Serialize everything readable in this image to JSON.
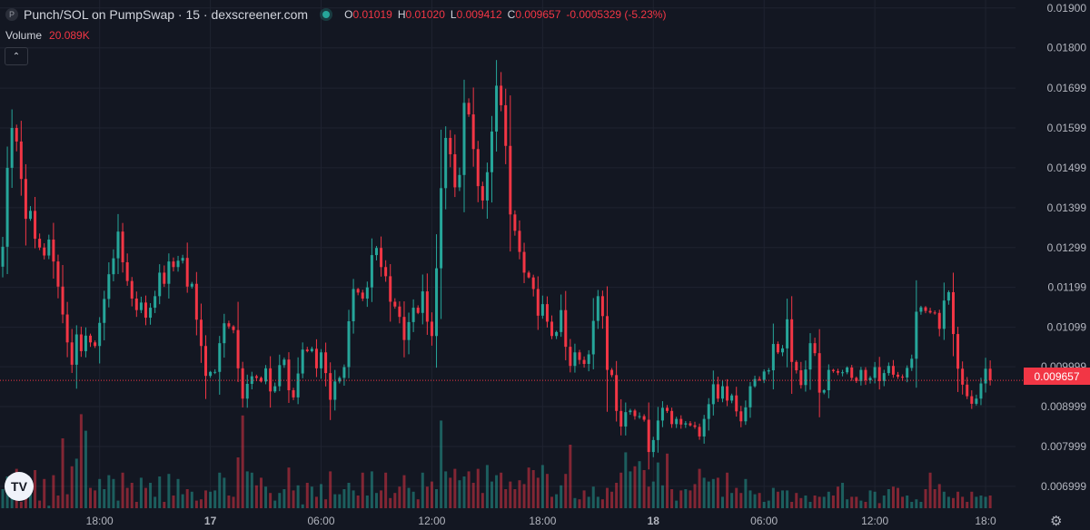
{
  "legend": {
    "symbol_icon": "P",
    "title": "Punch/SOL on PumpSwap · 15 · dexscreener.com",
    "open_key": "O",
    "open": "0.01019",
    "high_key": "H",
    "high": "0.01020",
    "low_key": "L",
    "low": "0.009412",
    "close_key": "C",
    "close": "0.009657",
    "change": "-0.0005329 (-5.23%)"
  },
  "volume": {
    "label": "Volume",
    "value": "20.089K"
  },
  "collapse_icon": "chevron-up-icon",
  "logo_text": "TV",
  "settings_icon": "gear-icon",
  "colors": {
    "up": "#26a69a",
    "down": "#f23645",
    "background": "#131722",
    "grid": "#1f2330",
    "text": "#b2b5be"
  },
  "chart_data": {
    "type": "candlestick",
    "price_axis": {
      "ylim": [
        0.00645,
        0.0192
      ],
      "ticks": [
        "0.01900",
        "0.01800",
        "0.01699",
        "0.01599",
        "0.01499",
        "0.01399",
        "0.01299",
        "0.01199",
        "0.01099",
        "0.009999",
        "0.008999",
        "0.007999",
        "0.006999"
      ],
      "tick_values": [
        0.019,
        0.018,
        0.01699,
        0.01599,
        0.01499,
        0.01399,
        0.01299,
        0.01199,
        0.01099,
        0.009999,
        0.008999,
        0.007999,
        0.006999
      ]
    },
    "time_axis": {
      "labels": [
        "18:00",
        "17",
        "06:00",
        "12:00",
        "18:00",
        "18",
        "06:00",
        "12:00",
        "18:0"
      ],
      "bold": [
        false,
        true,
        false,
        false,
        false,
        true,
        false,
        false,
        false
      ],
      "bar_index": [
        21,
        45,
        69,
        93,
        117,
        141,
        165,
        189,
        213
      ]
    },
    "last_price": 0.009657,
    "last_price_label": "0.009657",
    "closes": [
      0.01301,
      0.01499,
      0.01599,
      0.01565,
      0.01471,
      0.01371,
      0.01391,
      0.01321,
      0.01299,
      0.01279,
      0.01319,
      0.01264,
      0.01201,
      0.01131,
      0.01061,
      0.01005,
      0.01081,
      0.01039,
      0.01078,
      0.01061,
      0.01052,
      0.0111,
      0.0117,
      0.01232,
      0.01272,
      0.01339,
      0.01262,
      0.01215,
      0.01171,
      0.01142,
      0.01161,
      0.01123,
      0.01148,
      0.01177,
      0.01236,
      0.01208,
      0.01264,
      0.0125,
      0.01266,
      0.01273,
      0.01201,
      0.01208,
      0.01118,
      0.01052,
      0.00977,
      0.00987,
      0.00987,
      0.01059,
      0.01109,
      0.01101,
      0.01092,
      0.00996,
      0.0092,
      0.00957,
      0.00976,
      0.00972,
      0.00963,
      0.00996,
      0.00938,
      0.00951,
      0.01004,
      0.01018,
      0.00941,
      0.00923,
      0.00983,
      0.01043,
      0.01039,
      0.01045,
      0.00996,
      0.01036,
      0.00984,
      0.00917,
      0.00963,
      0.00972,
      0.00999,
      0.01114,
      0.01195,
      0.01186,
      0.01171,
      0.01199,
      0.0128,
      0.01298,
      0.0125,
      0.01227,
      0.01163,
      0.01151,
      0.01125,
      0.01067,
      0.01112,
      0.01148,
      0.01135,
      0.01189,
      0.01113,
      0.01077,
      0.01247,
      0.01448,
      0.01574,
      0.01533,
      0.0145,
      0.01481,
      0.01662,
      0.01633,
      0.01546,
      0.01453,
      0.01417,
      0.01488,
      0.0159,
      0.01705,
      0.01656,
      0.01554,
      0.01382,
      0.01341,
      0.01288,
      0.01236,
      0.01224,
      0.01195,
      0.01128,
      0.01157,
      0.01113,
      0.01077,
      0.01087,
      0.01142,
      0.0105,
      0.01002,
      0.01036,
      0.01017,
      0.01007,
      0.01031,
      0.01115,
      0.01177,
      0.01127,
      0.00992,
      0.00979,
      0.00889,
      0.0085,
      0.00886,
      0.0089,
      0.00876,
      0.00876,
      0.00867,
      0.00786,
      0.00816,
      0.00865,
      0.00897,
      0.00889,
      0.00856,
      0.00869,
      0.00855,
      0.00858,
      0.00853,
      0.00849,
      0.00825,
      0.00869,
      0.00906,
      0.00956,
      0.0092,
      0.00951,
      0.00915,
      0.00928,
      0.00888,
      0.00863,
      0.00898,
      0.00951,
      0.00969,
      0.00967,
      0.00988,
      0.00991,
      0.01057,
      0.01036,
      0.01046,
      0.01119,
      0.01012,
      0.00991,
      0.00954,
      0.00993,
      0.01059,
      0.01034,
      0.00935,
      0.00941,
      0.00992,
      0.00989,
      0.00985,
      0.00986,
      0.00998,
      0.00972,
      0.00964,
      0.00992,
      0.00966,
      0.00972,
      0.00999,
      0.00964,
      0.00984,
      0.01002,
      0.0098,
      0.00975,
      0.00973,
      0.00997,
      0.0102,
      0.01138,
      0.01149,
      0.0114,
      0.01136,
      0.01135,
      0.01095,
      0.01166,
      0.01187,
      0.01082,
      0.00995,
      0.00955,
      0.00926,
      0.00907,
      0.0092,
      0.00958,
      0.00995,
      0.00966
    ],
    "volumes": [
      0.15,
      0.25,
      0.1,
      0.31,
      0.05,
      0.11,
      0.16,
      0.3,
      0.06,
      0.23,
      0.02,
      0.26,
      0.1,
      0.55,
      0.11,
      0.33,
      0.39,
      0.74,
      0.61,
      0.16,
      0.14,
      0.23,
      0.15,
      0.26,
      0.23,
      0.06,
      0.28,
      0.16,
      0.2,
      0.05,
      0.24,
      0.16,
      0.2,
      0.09,
      0.25,
      0.05,
      0.27,
      0.1,
      0.23,
      0.11,
      0.15,
      0.13,
      0.06,
      0.07,
      0.14,
      0.13,
      0.14,
      0.28,
      0.24,
      0.1,
      0.09,
      0.4,
      0.73,
      0.29,
      0.28,
      0.18,
      0.24,
      0.17,
      0.12,
      0.06,
      0.12,
      0.15,
      0.32,
      0.14,
      0.18,
      0.03,
      0.2,
      0.17,
      0.09,
      0.19,
      0.07,
      0.29,
      0.11,
      0.11,
      0.15,
      0.2,
      0.14,
      0.1,
      0.28,
      0.1,
      0.29,
      0.12,
      0.14,
      0.28,
      0.08,
      0.12,
      0.17,
      0.26,
      0.16,
      0.13,
      0.07,
      0.28,
      0.17,
      0.21,
      0.15,
      0.69,
      0.29,
      0.24,
      0.31,
      0.22,
      0.25,
      0.29,
      0.2,
      0.31,
      0.12,
      0.34,
      0.21,
      0.26,
      0.28,
      0.15,
      0.21,
      0.15,
      0.22,
      0.19,
      0.32,
      0.3,
      0.24,
      0.34,
      0.27,
      0.09,
      0.11,
      0.18,
      0.27,
      0.5,
      0.08,
      0.07,
      0.14,
      0.09,
      0.17,
      0.09,
      0.07,
      0.16,
      0.13,
      0.2,
      0.28,
      0.44,
      0.29,
      0.33,
      0.37,
      0.3,
      0.17,
      0.21,
      0.36,
      0.18,
      0.43,
      0.15,
      0.06,
      0.14,
      0.15,
      0.14,
      0.19,
      0.31,
      0.24,
      0.21,
      0.23,
      0.24,
      0.09,
      0.28,
      0.12,
      0.16,
      0.12,
      0.23,
      0.14,
      0.11,
      0.12,
      0.05,
      0.06,
      0.16,
      0.13,
      0.14,
      0.14,
      0.05,
      0.12,
      0.08,
      0.1,
      0.05,
      0.1,
      0.09,
      0.09,
      0.13,
      0.1,
      0.17,
      0.2,
      0.07,
      0.09,
      0.09,
      0.06,
      0.05,
      0.14,
      0.13,
      0.04,
      0.1,
      0.15,
      0.17,
      0.16,
      0.09,
      0.1,
      0.05,
      0.07,
      0.05,
      0.15,
      0.28,
      0.15,
      0.19,
      0.13,
      0.09,
      0.08,
      0.13,
      0.09,
      0.05,
      0.13,
      0.09,
      0.1,
      0.09,
      0.1,
      0.11,
      0.06,
      0.07,
      0.03,
      0.05
    ]
  }
}
